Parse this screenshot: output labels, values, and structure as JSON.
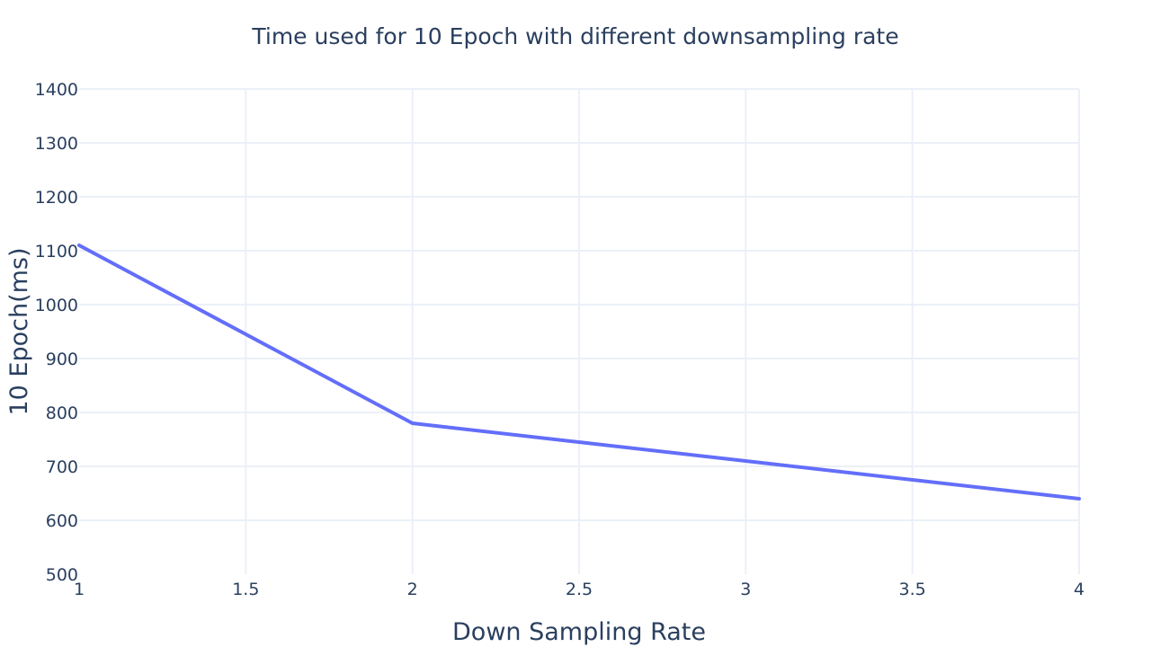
{
  "chart_data": {
    "type": "line",
    "title": "Time used for 10 Epoch with different downsampling rate",
    "xlabel": "Down Sampling Rate",
    "ylabel": "10 Epoch(ms)",
    "xlim": [
      1,
      4
    ],
    "ylim": [
      500,
      1400
    ],
    "xticks": [
      1,
      1.5,
      2,
      2.5,
      3,
      3.5,
      4
    ],
    "yticks": [
      500,
      600,
      700,
      800,
      900,
      1000,
      1100,
      1200,
      1300,
      1400
    ],
    "grid": true,
    "legend": "none",
    "series": [
      {
        "color": "#636efa",
        "x": [
          1,
          2,
          3,
          4
        ],
        "y": [
          1110,
          780,
          710,
          640
        ]
      }
    ]
  }
}
